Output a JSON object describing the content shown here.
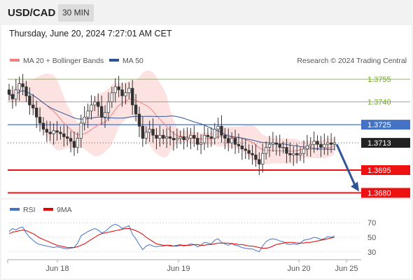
{
  "header": {
    "symbol": "USD/CAD",
    "timeframe": "30 MIN"
  },
  "timestamp": "Thursday, June 20, 2024 7:27:01 AM CET",
  "credit": "Research © 2024 Trading Central",
  "legend_main": [
    {
      "label": "MA 20 + Bollinger Bands",
      "color": "#f08080"
    },
    {
      "label": "MA 50",
      "color": "#2f5597"
    }
  ],
  "legend_rsi": [
    {
      "label": "RSI",
      "color": "#4472c4"
    },
    {
      "label": "9MA",
      "color": "#e00000"
    }
  ],
  "colors": {
    "resistance_green": "#6aaa1e",
    "pivot_blue": "#4472c4",
    "support_red": "#ee1111",
    "current_price": "#222222",
    "bollinger_fill": "#fde2e2",
    "arrow": "#2f5597"
  },
  "chart_data": [
    {
      "type": "candlestick",
      "title": "",
      "x_tick_labels": [
        "Jun 18",
        "Jun 19",
        "Jun 20",
        "Jun 25"
      ],
      "ylim": [
        1.3677,
        1.3762
      ],
      "levels": [
        {
          "value": 1.3755,
          "label": "1.3755",
          "kind": "resistance"
        },
        {
          "value": 1.374,
          "label": "1.3740",
          "kind": "resistance"
        },
        {
          "value": 1.3725,
          "label": "1.3725",
          "kind": "pivot"
        },
        {
          "value": 1.3713,
          "label": "1.3713",
          "kind": "current"
        },
        {
          "value": 1.3695,
          "label": "1.3695",
          "kind": "support"
        },
        {
          "value": 1.368,
          "label": "1.3680",
          "kind": "support"
        }
      ],
      "forecast_arrow": {
        "from": 1.3712,
        "to": 1.368
      },
      "close_series": [
        1.3745,
        1.3742,
        1.3748,
        1.3752,
        1.375,
        1.3744,
        1.3738,
        1.3736,
        1.373,
        1.3726,
        1.3722,
        1.372,
        1.3719,
        1.3721,
        1.372,
        1.3719,
        1.3717,
        1.3716,
        1.3714,
        1.371,
        1.3716,
        1.3726,
        1.373,
        1.3734,
        1.3738,
        1.374,
        1.3737,
        1.373,
        1.3733,
        1.374,
        1.3746,
        1.375,
        1.3748,
        1.3744,
        1.3746,
        1.3749,
        1.3738,
        1.3732,
        1.3724,
        1.3716,
        1.372,
        1.3722,
        1.3718,
        1.3716,
        1.3718,
        1.3716,
        1.3717,
        1.3716,
        1.3715,
        1.3716,
        1.3717,
        1.3715,
        1.3716,
        1.3718,
        1.3716,
        1.3712,
        1.3713,
        1.3718,
        1.3717,
        1.3716,
        1.3722,
        1.3724,
        1.3718,
        1.3716,
        1.3713,
        1.3716,
        1.3712,
        1.3711,
        1.3709,
        1.3708,
        1.3706,
        1.3705,
        1.3702,
        1.3699,
        1.3706,
        1.371,
        1.3712,
        1.3713,
        1.3712,
        1.371,
        1.371,
        1.3706,
        1.3705,
        1.3706,
        1.3705,
        1.3706,
        1.3709,
        1.3711,
        1.3712,
        1.3714,
        1.3712,
        1.371,
        1.3712,
        1.3713,
        1.3712,
        1.3713
      ]
    },
    {
      "type": "line",
      "title": "",
      "series": [
        {
          "name": "RSI"
        },
        {
          "name": "9MA"
        }
      ],
      "ylim": [
        25,
        75
      ],
      "y_ticks": [
        70,
        50,
        30
      ],
      "rsi": [
        58,
        62,
        60,
        63,
        64,
        56,
        50,
        46,
        42,
        40,
        39,
        38,
        37,
        36,
        37,
        36,
        35,
        34,
        35,
        36,
        42,
        52,
        55,
        58,
        60,
        62,
        60,
        56,
        58,
        62,
        66,
        68,
        66,
        62,
        64,
        66,
        54,
        48,
        40,
        33,
        38,
        40,
        38,
        37,
        38,
        38,
        39,
        38,
        38,
        39,
        40,
        38,
        39,
        41,
        40,
        37,
        39,
        43,
        42,
        41,
        46,
        48,
        43,
        41,
        39,
        42,
        39,
        38,
        36,
        35,
        34,
        34,
        32,
        30,
        38,
        44,
        47,
        48,
        47,
        45,
        44,
        41,
        40,
        41,
        40,
        42,
        46,
        47,
        48,
        50,
        49,
        47,
        48,
        51,
        50,
        52
      ],
      "ma9": [
        55,
        57,
        58,
        59,
        60,
        59,
        57,
        55,
        52,
        49,
        47,
        45,
        43,
        41,
        39,
        38,
        37,
        36,
        36,
        36,
        37,
        39,
        41,
        44,
        47,
        50,
        53,
        55,
        56,
        57,
        58,
        59,
        60,
        61,
        62,
        62,
        61,
        59,
        57,
        54,
        50,
        47,
        44,
        41,
        40,
        39,
        39,
        39,
        38,
        38,
        39,
        39,
        39,
        39,
        40,
        40,
        39,
        39,
        40,
        40,
        41,
        42,
        42,
        42,
        42,
        41,
        41,
        40,
        40,
        39,
        38,
        38,
        37,
        36,
        35,
        35,
        36,
        38,
        40,
        41,
        42,
        43,
        43,
        43,
        42,
        42,
        42,
        43,
        43,
        44,
        45,
        46,
        47,
        48,
        49,
        50
      ]
    }
  ]
}
